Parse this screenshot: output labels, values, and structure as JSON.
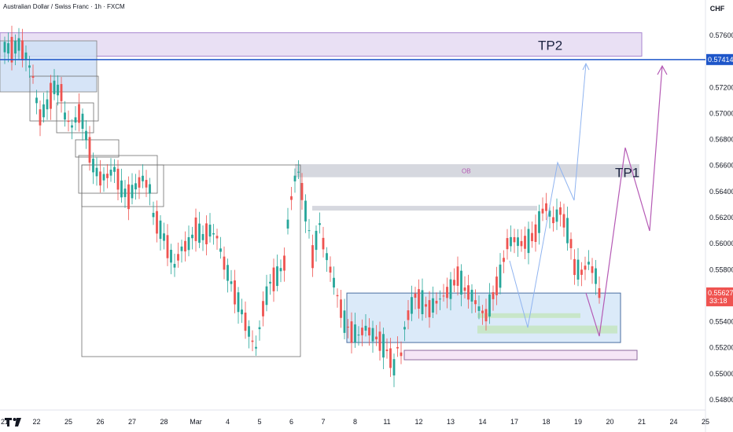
{
  "header": {
    "title": "Australian Dollar / Swiss Franc · 1h · FXCM"
  },
  "colors": {
    "up": "#26a69a",
    "down": "#ef5350",
    "blue_line": "#1e56c9",
    "purple": "#b55ab5",
    "light_blue": "#90b4f0"
  },
  "chart_data": {
    "type": "candlestick",
    "title": "Australian Dollar / Swiss Franc · 1h · FXCM",
    "currency": "CHF",
    "ylim": [
      0.5476,
      0.5774
    ],
    "y_ticks": [
      "0.57600",
      "0.57400",
      "0.57200",
      "0.57000",
      "0.56800",
      "0.56600",
      "0.56400",
      "0.56200",
      "0.56000",
      "0.55800",
      "0.55600",
      "0.55400",
      "0.55200",
      "0.55000",
      "0.54800"
    ],
    "y_tick_values": [
      0.576,
      0.574,
      0.572,
      0.57,
      0.568,
      0.566,
      0.564,
      0.562,
      0.56,
      0.558,
      0.556,
      0.554,
      0.552,
      0.55,
      0.548
    ],
    "x_ticks": [
      "21",
      "22",
      "25",
      "26",
      "27",
      "28",
      "Mar",
      "4",
      "5",
      "6",
      "7",
      "8",
      "11",
      "12",
      "13",
      "14",
      "17",
      "18",
      "19",
      "20",
      "21",
      "24",
      "25"
    ],
    "x_tick_pos": [
      0,
      9,
      18,
      27,
      36,
      45,
      54,
      63,
      72,
      81,
      90,
      99,
      108,
      117,
      126,
      135,
      144,
      153,
      162,
      171,
      180,
      189,
      198
    ],
    "price_labels": [
      {
        "text": "0.57414",
        "value": 0.57414,
        "color": "#1e56c9"
      },
      {
        "text": "0.55627",
        "sub": "33:18",
        "value": 0.55627,
        "color": "#ef5350"
      }
    ],
    "zones": [
      {
        "label": "TP2",
        "y_top": 0.5762,
        "y_bottom": 0.5744,
        "x_from": 0,
        "x_to": 185
      },
      {
        "label": "TP1",
        "y_top": 0.5661,
        "y_bottom": 0.5652,
        "x_from": 82,
        "x_to": 185
      },
      {
        "label": "OB",
        "y_top": 0.5661,
        "y_bottom": 0.5652,
        "x_from": 82,
        "x_to": 185
      }
    ],
    "close_series": [
      [
        0,
        0.5751
      ],
      [
        2,
        0.5749
      ],
      [
        4,
        0.5753
      ],
      [
        6,
        0.5744
      ],
      [
        8,
        0.5728
      ],
      [
        9,
        0.571
      ],
      [
        10,
        0.5697
      ],
      [
        12,
        0.5707
      ],
      [
        14,
        0.572
      ],
      [
        16,
        0.5716
      ],
      [
        17,
        0.5698
      ],
      [
        19,
        0.569
      ],
      [
        21,
        0.57
      ],
      [
        22,
        0.5694
      ],
      [
        24,
        0.5672
      ],
      [
        25,
        0.566
      ],
      [
        27,
        0.565
      ],
      [
        29,
        0.5652
      ],
      [
        31,
        0.5657
      ],
      [
        33,
        0.5642
      ],
      [
        35,
        0.5636
      ],
      [
        37,
        0.5644
      ],
      [
        39,
        0.565
      ],
      [
        41,
        0.5642
      ],
      [
        42,
        0.5622
      ],
      [
        45,
        0.5605
      ],
      [
        48,
        0.5583
      ],
      [
        50,
        0.5596
      ],
      [
        52,
        0.56
      ],
      [
        54,
        0.5611
      ],
      [
        56,
        0.5605
      ],
      [
        58,
        0.561
      ],
      [
        60,
        0.5605
      ],
      [
        62,
        0.5585
      ],
      [
        64,
        0.557
      ],
      [
        66,
        0.5555
      ],
      [
        68,
        0.554
      ],
      [
        70,
        0.5525
      ],
      [
        71,
        0.552
      ],
      [
        73,
        0.555
      ],
      [
        75,
        0.557
      ],
      [
        77,
        0.5575
      ],
      [
        79,
        0.5585
      ],
      [
        80,
        0.5615
      ],
      [
        81,
        0.5635
      ],
      [
        82,
        0.565
      ],
      [
        83,
        0.5655
      ],
      [
        84,
        0.564
      ],
      [
        86,
        0.561
      ],
      [
        87,
        0.559
      ],
      [
        89,
        0.5615
      ],
      [
        90,
        0.56
      ],
      [
        92,
        0.558
      ],
      [
        94,
        0.556
      ],
      [
        96,
        0.554
      ],
      [
        98,
        0.5532
      ],
      [
        100,
        0.553
      ],
      [
        102,
        0.5535
      ],
      [
        104,
        0.553
      ],
      [
        106,
        0.5525
      ],
      [
        108,
        0.5518
      ],
      [
        109,
        0.5512
      ],
      [
        110,
        0.5505
      ],
      [
        111,
        0.552
      ],
      [
        112,
        0.5515
      ],
      [
        113,
        0.5535
      ],
      [
        114,
        0.5545
      ],
      [
        116,
        0.556
      ],
      [
        118,
        0.5555
      ],
      [
        120,
        0.555
      ],
      [
        122,
        0.5555
      ],
      [
        124,
        0.556
      ],
      [
        126,
        0.5565
      ],
      [
        128,
        0.5575
      ],
      [
        130,
        0.5565
      ],
      [
        132,
        0.556
      ],
      [
        134,
        0.555
      ],
      [
        136,
        0.5545
      ],
      [
        138,
        0.556
      ],
      [
        140,
        0.5575
      ],
      [
        142,
        0.56
      ],
      [
        144,
        0.5603
      ],
      [
        146,
        0.56
      ],
      [
        148,
        0.5602
      ],
      [
        150,
        0.5608
      ],
      [
        152,
        0.5625
      ],
      [
        153,
        0.5628
      ],
      [
        155,
        0.5618
      ],
      [
        157,
        0.5625
      ],
      [
        159,
        0.561
      ],
      [
        160,
        0.56
      ],
      [
        161,
        0.5582
      ],
      [
        163,
        0.5578
      ],
      [
        165,
        0.5585
      ],
      [
        167,
        0.5575
      ],
      [
        168,
        0.5562
      ]
    ]
  }
}
